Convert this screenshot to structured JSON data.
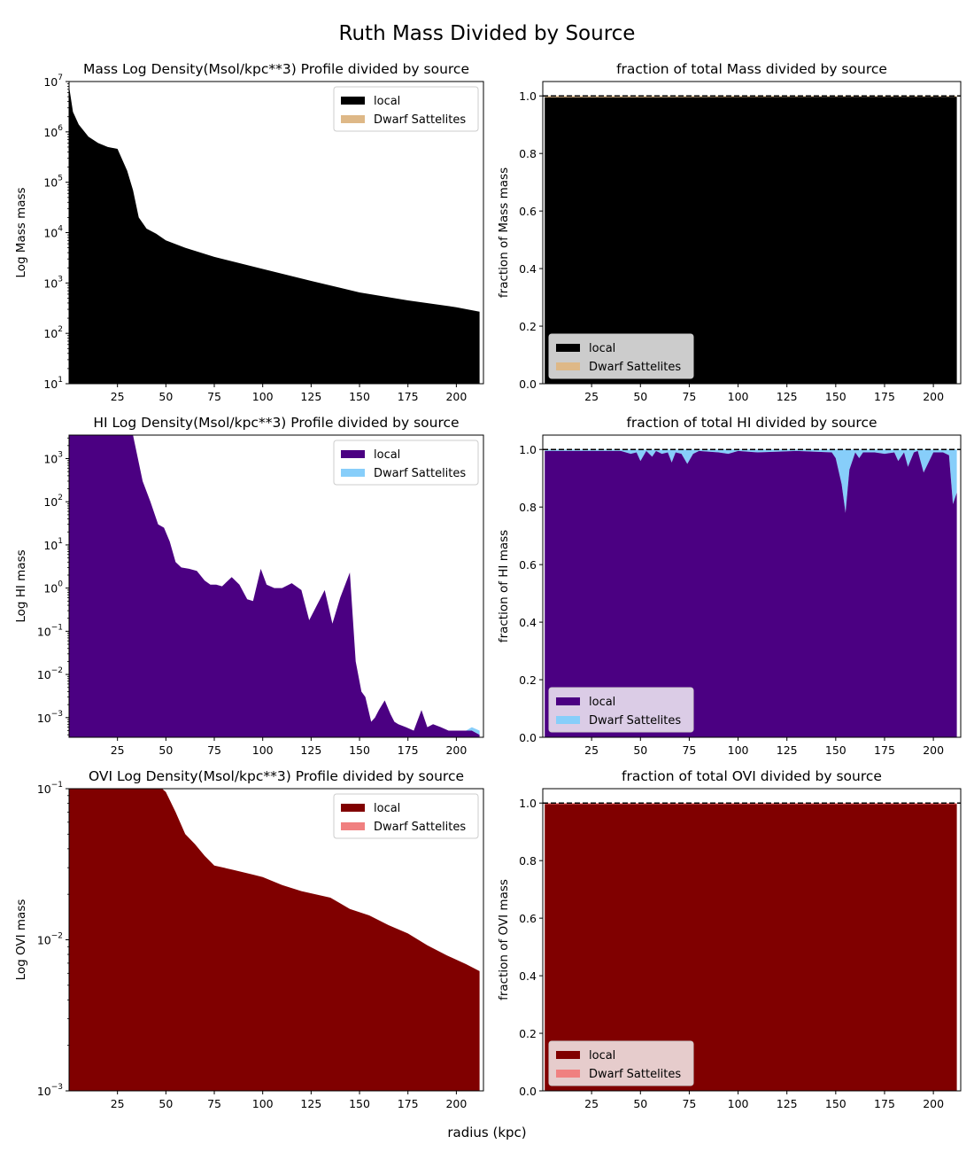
{
  "figure": {
    "title": "Ruth Mass Divided by Source",
    "xlabel": "radius (kpc)"
  },
  "legend_labels": [
    "local",
    "Dwarf Sattelites"
  ],
  "chart_data": [
    {
      "type": "area",
      "title": "Mass Log Density(Msol/kpc**3) Profile  divided by source",
      "ylabel": "Log Mass mass",
      "yscale": "log",
      "xlim": [
        0,
        214
      ],
      "ylim": [
        10,
        10000000
      ],
      "xticks": [
        25,
        50,
        75,
        100,
        125,
        150,
        175,
        200
      ],
      "yticks": [
        10,
        100,
        1000,
        10000,
        100000,
        1000000,
        10000000
      ],
      "legend_loc": "upper right",
      "x": [
        0,
        2,
        5,
        10,
        15,
        20,
        25,
        30,
        33,
        36,
        40,
        45,
        50,
        60,
        75,
        100,
        125,
        150,
        175,
        200,
        212
      ],
      "series": [
        {
          "name": "local",
          "color": "#000000",
          "values": [
            8000000,
            2500000,
            1400000,
            800000,
            600000,
            500000,
            460000,
            170000,
            70000,
            20000,
            12000,
            9500,
            7000,
            5000,
            3300,
            1900,
            1100,
            650,
            450,
            330,
            270
          ]
        },
        {
          "name": "Dwarf Sattelites",
          "color": "#deb887",
          "values": [
            0,
            0,
            0,
            0,
            0,
            0,
            0,
            0,
            0,
            0,
            0,
            0,
            0,
            0,
            0,
            0,
            0,
            0,
            0,
            0,
            0
          ]
        }
      ]
    },
    {
      "type": "area",
      "title": "fraction of total Mass divided by source",
      "ylabel": "fraction of Mass mass",
      "yscale": "linear",
      "xlim": [
        0,
        214
      ],
      "ylim": [
        0,
        1.05
      ],
      "xticks": [
        25,
        50,
        75,
        100,
        125,
        150,
        175,
        200
      ],
      "yticks": [
        0.0,
        0.2,
        0.4,
        0.6,
        0.8,
        1.0
      ],
      "hline": 1.0,
      "legend_loc": "lower left",
      "x": [
        1,
        50,
        100,
        150,
        200,
        212
      ],
      "series": [
        {
          "name": "local",
          "color": "#000000",
          "values": [
            0.995,
            0.995,
            0.996,
            0.997,
            0.997,
            0.997
          ]
        },
        {
          "name": "Dwarf Sattelites",
          "color": "#deb887",
          "values": [
            0.005,
            0.005,
            0.004,
            0.003,
            0.003,
            0.003
          ]
        }
      ]
    },
    {
      "type": "area",
      "title": "HI Log Density(Msol/kpc**3) Profile  divided by source",
      "ylabel": "Log HI mass",
      "yscale": "log",
      "xlim": [
        0,
        214
      ],
      "ylim": [
        0.00035,
        3500
      ],
      "xticks": [
        25,
        50,
        75,
        100,
        125,
        150,
        175,
        200
      ],
      "yticks": [
        0.001,
        0.01,
        0.1,
        1,
        10,
        100,
        1000
      ],
      "legend_loc": "upper right",
      "x": [
        0,
        10,
        20,
        33,
        38,
        42,
        46,
        49,
        52,
        55,
        58,
        62,
        66,
        70,
        73,
        76,
        79,
        84,
        88,
        92,
        95,
        99,
        102,
        106,
        110,
        115,
        120,
        124,
        128,
        132,
        136,
        140,
        145,
        148,
        151,
        153,
        156,
        158,
        160,
        163,
        166,
        168,
        170,
        174,
        178,
        182,
        185,
        188,
        192,
        196,
        200,
        205,
        208,
        212
      ],
      "series": [
        {
          "name": "local",
          "color": "#4b0082",
          "values": [
            3500,
            3500,
            3500,
            3500,
            300,
            100,
            30,
            25,
            12,
            4,
            3,
            2.8,
            2.5,
            1.5,
            1.2,
            1.2,
            1.1,
            1.8,
            1.2,
            0.55,
            0.5,
            2.8,
            1.2,
            1.0,
            1.0,
            1.3,
            0.9,
            0.18,
            0.4,
            0.9,
            0.15,
            0.6,
            2.3,
            0.02,
            0.004,
            0.003,
            0.0008,
            0.001,
            0.0015,
            0.0025,
            0.0012,
            0.0008,
            0.0007,
            0.0006,
            0.0005,
            0.0015,
            0.0006,
            0.0007,
            0.0006,
            0.0005,
            0.0005,
            0.0005,
            0.0005,
            0.0004
          ]
        },
        {
          "name": "Dwarf Sattelites",
          "color": "#87cefa",
          "values": [
            0,
            0,
            0,
            0,
            0,
            0,
            0,
            0,
            0,
            0,
            0,
            0,
            0,
            0,
            0,
            0,
            0,
            0,
            0,
            0,
            0,
            0,
            0,
            0,
            0,
            0,
            0,
            0,
            0,
            0,
            0,
            0,
            0,
            0,
            0,
            0,
            0,
            0,
            0,
            0,
            0,
            0,
            0,
            0,
            0,
            0,
            0,
            0,
            0,
            0,
            0,
            0,
            0.0001,
            0.0001
          ]
        }
      ]
    },
    {
      "type": "area",
      "title": "fraction of total HI divided by source",
      "ylabel": "fraction of HI mass",
      "yscale": "linear",
      "xlim": [
        0,
        214
      ],
      "ylim": [
        0,
        1.05
      ],
      "xticks": [
        25,
        50,
        75,
        100,
        125,
        150,
        175,
        200
      ],
      "yticks": [
        0.0,
        0.2,
        0.4,
        0.6,
        0.8,
        1.0
      ],
      "hline": 1.0,
      "legend_loc": "lower left",
      "x": [
        1,
        40,
        45,
        48,
        50,
        53,
        56,
        58,
        61,
        64,
        66,
        68,
        71,
        74,
        77,
        80,
        90,
        95,
        100,
        110,
        130,
        148,
        150,
        153,
        155,
        157,
        160,
        162,
        164,
        167,
        170,
        175,
        180,
        182,
        185,
        187,
        190,
        192,
        195,
        200,
        205,
        208,
        210,
        212
      ],
      "series": [
        {
          "name": "local",
          "color": "#4b0082",
          "values": [
            0.995,
            0.995,
            0.985,
            0.99,
            0.96,
            0.995,
            0.975,
            0.995,
            0.985,
            0.99,
            0.955,
            0.99,
            0.985,
            0.95,
            0.985,
            0.995,
            0.99,
            0.985,
            0.995,
            0.99,
            0.995,
            0.99,
            0.97,
            0.88,
            0.78,
            0.93,
            0.99,
            0.97,
            0.99,
            0.99,
            0.99,
            0.985,
            0.99,
            0.96,
            0.99,
            0.94,
            0.99,
            0.995,
            0.92,
            0.99,
            0.99,
            0.98,
            0.81,
            0.85
          ]
        },
        {
          "name": "Dwarf Sattelites",
          "color": "#87cefa",
          "values": [
            0.005,
            0.005,
            0.015,
            0.01,
            0.04,
            0.005,
            0.025,
            0.005,
            0.015,
            0.01,
            0.045,
            0.01,
            0.015,
            0.05,
            0.015,
            0.005,
            0.01,
            0.015,
            0.005,
            0.01,
            0.005,
            0.01,
            0.03,
            0.12,
            0.22,
            0.07,
            0.01,
            0.03,
            0.01,
            0.01,
            0.01,
            0.015,
            0.01,
            0.04,
            0.01,
            0.06,
            0.01,
            0.005,
            0.08,
            0.01,
            0.01,
            0.02,
            0.19,
            0.15
          ]
        }
      ]
    },
    {
      "type": "area",
      "title": "OVI Log Density(Msol/kpc**3) Profile  divided by source",
      "ylabel": "Log OVI mass",
      "yscale": "log",
      "xlim": [
        0,
        214
      ],
      "ylim": [
        0.001,
        0.1
      ],
      "xticks": [
        25,
        50,
        75,
        100,
        125,
        150,
        175,
        200
      ],
      "yticks": [
        0.001,
        0.01,
        0.1
      ],
      "legend_loc": "upper right",
      "x": [
        0,
        48,
        50,
        55,
        60,
        65,
        70,
        75,
        85,
        95,
        100,
        110,
        120,
        135,
        145,
        155,
        165,
        175,
        185,
        195,
        205,
        212
      ],
      "series": [
        {
          "name": "local",
          "color": "#800000",
          "values": [
            0.1,
            0.1,
            0.095,
            0.07,
            0.05,
            0.043,
            0.036,
            0.031,
            0.029,
            0.027,
            0.026,
            0.023,
            0.021,
            0.019,
            0.016,
            0.0145,
            0.0125,
            0.011,
            0.0092,
            0.0079,
            0.0069,
            0.0062
          ]
        },
        {
          "name": "Dwarf Sattelites",
          "color": "#f08080",
          "values": [
            0,
            0,
            0,
            0,
            0,
            0,
            0,
            0,
            0,
            0,
            0,
            0,
            0,
            0,
            0,
            0,
            0,
            0,
            0,
            0,
            0,
            0
          ]
        }
      ]
    },
    {
      "type": "area",
      "title": "fraction of total OVI divided by source",
      "ylabel": "fraction of OVI mass",
      "yscale": "linear",
      "xlim": [
        0,
        214
      ],
      "ylim": [
        0,
        1.05
      ],
      "xticks": [
        25,
        50,
        75,
        100,
        125,
        150,
        175,
        200
      ],
      "yticks": [
        0.0,
        0.2,
        0.4,
        0.6,
        0.8,
        1.0
      ],
      "hline": 1.0,
      "legend_loc": "lower left",
      "x": [
        1,
        50,
        100,
        150,
        200,
        212
      ],
      "series": [
        {
          "name": "local",
          "color": "#800000",
          "values": [
            0.996,
            0.996,
            0.996,
            0.996,
            0.996,
            0.996
          ]
        },
        {
          "name": "Dwarf Sattelites",
          "color": "#f08080",
          "values": [
            0.004,
            0.004,
            0.004,
            0.004,
            0.004,
            0.004
          ]
        }
      ]
    }
  ]
}
